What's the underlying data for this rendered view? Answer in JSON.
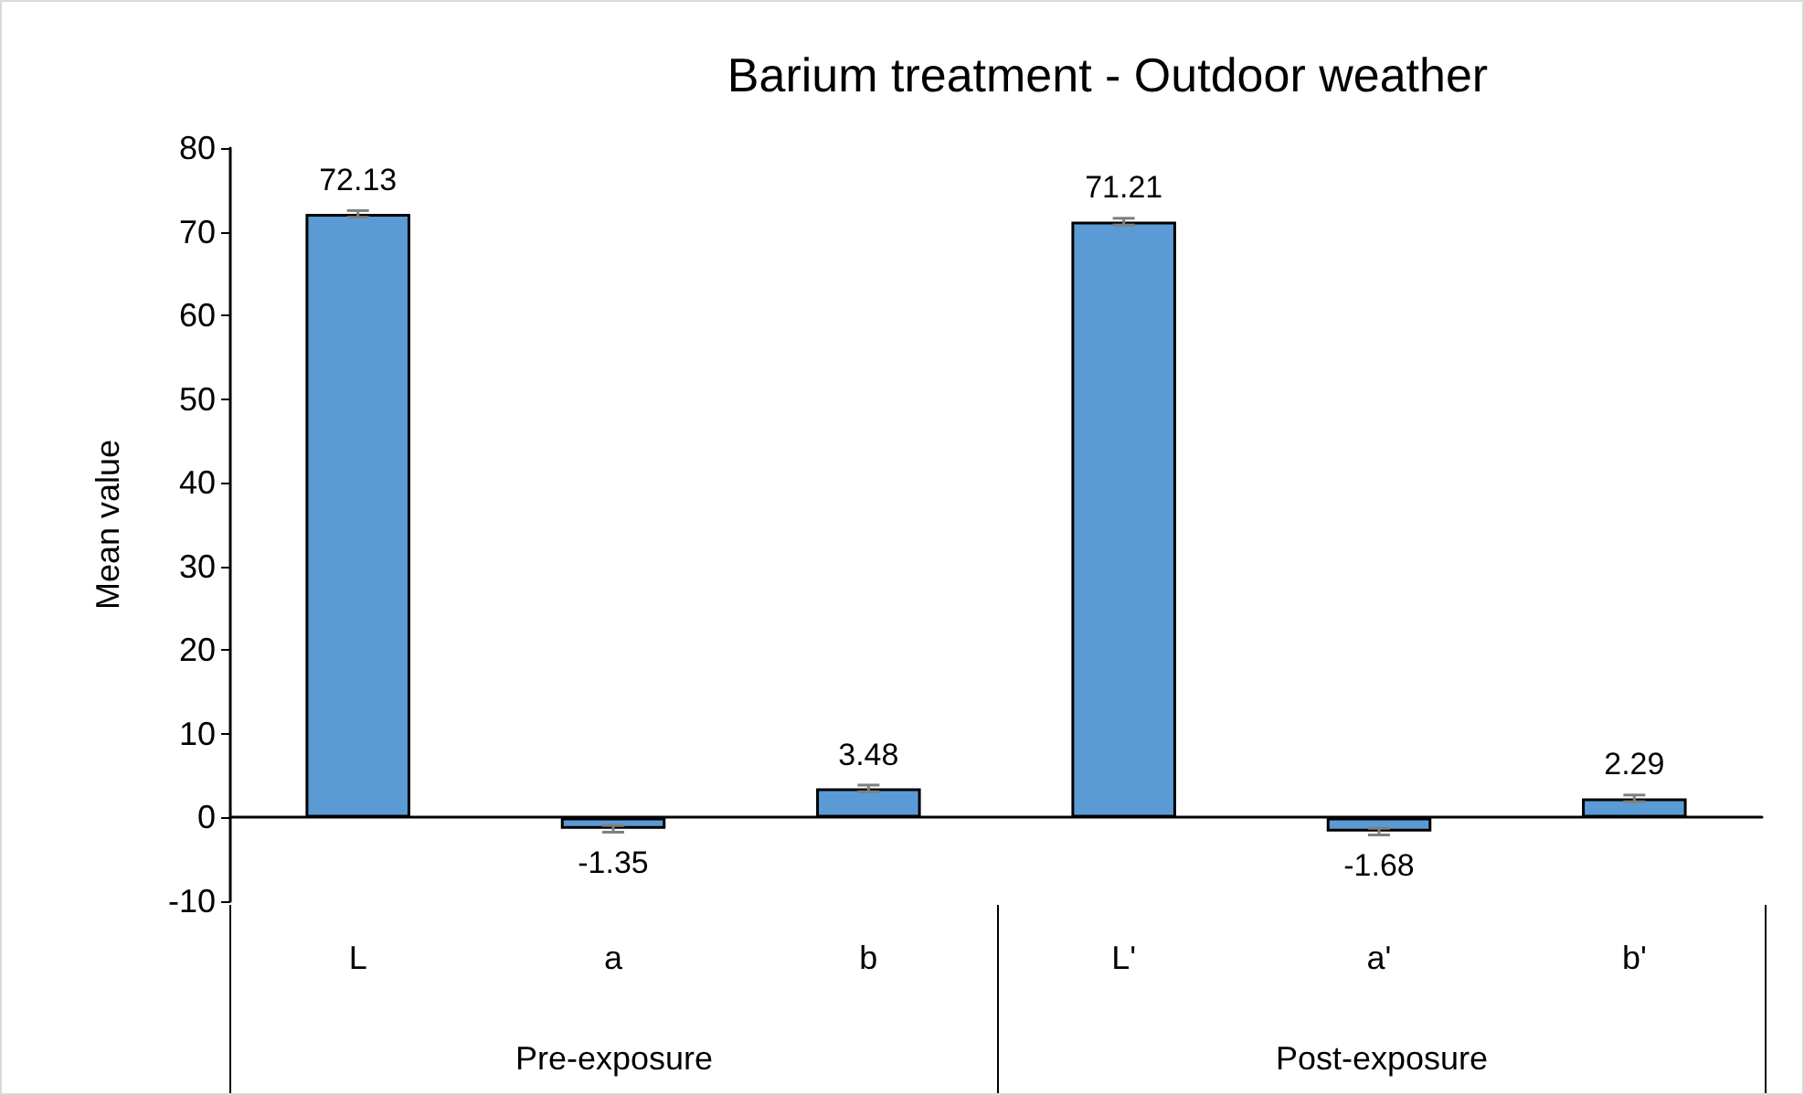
{
  "chart_data": {
    "type": "bar",
    "title": "Barium treatment - Outdoor weather",
    "ylabel": "Mean value",
    "categories": [
      "L",
      "a",
      "b",
      "L'",
      "a'",
      "b'"
    ],
    "values": [
      72.13,
      -1.35,
      3.48,
      71.21,
      -1.68,
      2.29
    ],
    "errors": [
      0.4,
      0.4,
      0.4,
      0.4,
      0.4,
      0.4
    ],
    "color": "#5b9bd5",
    "data_labels": true,
    "ylim": [
      -10,
      80
    ],
    "yticks": [
      -10,
      0,
      10,
      20,
      30,
      40,
      50,
      60,
      70,
      80
    ],
    "annotations": [
      "Pre-exposure",
      "Post-exposure"
    ]
  }
}
